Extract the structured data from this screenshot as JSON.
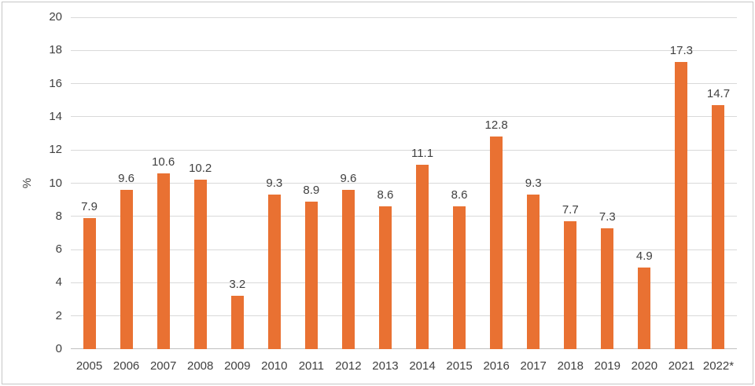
{
  "chart_data": {
    "type": "bar",
    "title": "",
    "xlabel": "",
    "ylabel": "%",
    "categories": [
      "2005",
      "2006",
      "2007",
      "2008",
      "2009",
      "2010",
      "2011",
      "2012",
      "2013",
      "2014",
      "2015",
      "2016",
      "2017",
      "2018",
      "2019",
      "2020",
      "2021",
      "2022*"
    ],
    "values": [
      7.9,
      9.6,
      10.6,
      10.2,
      3.2,
      9.3,
      8.9,
      9.6,
      8.6,
      11.1,
      8.6,
      12.8,
      9.3,
      7.7,
      7.3,
      4.9,
      17.3,
      14.7
    ],
    "ylim": [
      0,
      20
    ],
    "ytick_step": 2,
    "grid": true,
    "legend_position": "none",
    "data_labels": true,
    "colors": {
      "bar": "#E97132",
      "gridline": "#D9D9D9",
      "axis_line": "#BFBFBF",
      "text": "#404040",
      "frame_border": "#C6C6C6",
      "background": "#FFFFFF"
    }
  }
}
